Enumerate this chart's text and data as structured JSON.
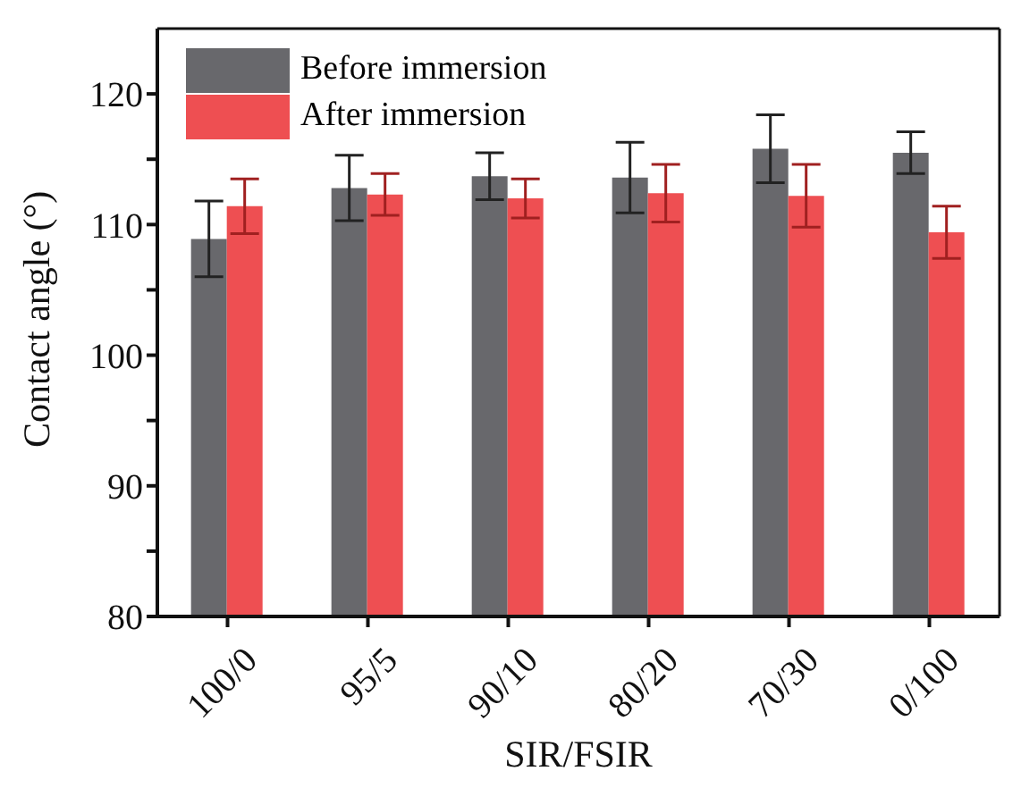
{
  "chart_data": {
    "type": "bar",
    "xlabel": "SIR/FSIR",
    "ylabel": "Contact angle (°)",
    "categories": [
      "100/0",
      "95/5",
      "90/10",
      "80/20",
      "70/30",
      "0/100"
    ],
    "series": [
      {
        "name": "Before immersion",
        "color": "#68686c",
        "values": [
          108.9,
          112.8,
          113.7,
          113.6,
          115.8,
          115.5
        ],
        "errors": [
          2.9,
          2.5,
          1.8,
          2.7,
          2.6,
          1.6
        ]
      },
      {
        "name": "After immersion",
        "color": "#ee4f52",
        "values": [
          111.4,
          112.3,
          112.0,
          112.4,
          112.2,
          109.4
        ],
        "errors": [
          2.1,
          1.6,
          1.5,
          2.2,
          2.4,
          2.0
        ]
      }
    ],
    "ylim": [
      80,
      125
    ],
    "yticks": [
      80,
      {
        "value": 85,
        "label": null
      },
      90,
      {
        "value": 95,
        "label": null
      },
      100,
      {
        "value": 105,
        "label": null
      },
      110,
      {
        "value": 115,
        "label": null
      },
      120
    ],
    "grid": false,
    "legend": "top left"
  }
}
